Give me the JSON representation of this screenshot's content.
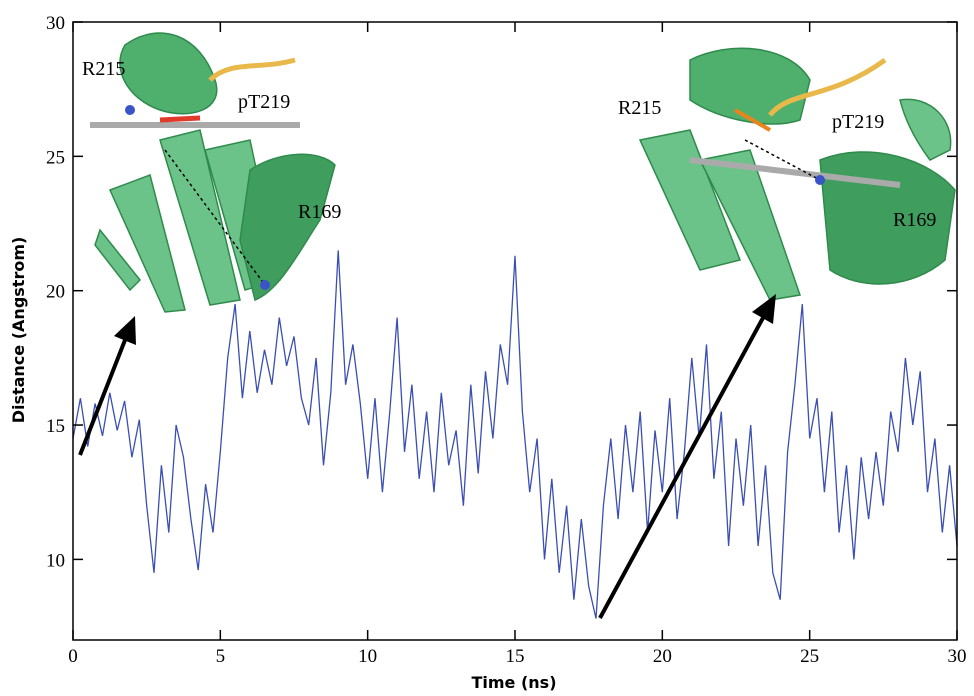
{
  "chart_data": {
    "type": "line",
    "x_label": "Time (ns)",
    "y_label": "Distance (Angstrom)",
    "xlim": [
      0,
      30
    ],
    "xticks": [
      0,
      5,
      10,
      15,
      20,
      25,
      30
    ],
    "ylim": [
      7,
      30
    ],
    "yticks": [
      10,
      15,
      20,
      25,
      30
    ],
    "x": [
      0,
      0.25,
      0.5,
      0.75,
      1,
      1.25,
      1.5,
      1.75,
      2,
      2.25,
      2.5,
      2.75,
      3,
      3.25,
      3.5,
      3.75,
      4,
      4.25,
      4.5,
      4.75,
      5,
      5.25,
      5.5,
      5.75,
      6,
      6.25,
      6.5,
      6.75,
      7,
      7.25,
      7.5,
      7.75,
      8,
      8.25,
      8.5,
      8.75,
      9,
      9.25,
      9.5,
      9.75,
      10,
      10.25,
      10.5,
      10.75,
      11,
      11.25,
      11.5,
      11.75,
      12,
      12.25,
      12.5,
      12.75,
      13,
      13.25,
      13.5,
      13.75,
      14,
      14.25,
      14.5,
      14.75,
      15,
      15.25,
      15.5,
      15.75,
      16,
      16.25,
      16.5,
      16.75,
      17,
      17.25,
      17.5,
      17.75,
      18,
      18.25,
      18.5,
      18.75,
      19,
      19.25,
      19.5,
      19.75,
      20,
      20.25,
      20.5,
      20.75,
      21,
      21.25,
      21.5,
      21.75,
      22,
      22.25,
      22.5,
      22.75,
      23,
      23.25,
      23.5,
      23.75,
      24,
      24.25,
      24.5,
      24.75,
      25,
      25.25,
      25.5,
      25.75,
      26,
      26.25,
      26.5,
      26.75,
      27,
      27.25,
      27.5,
      27.75,
      28,
      28.25,
      28.5,
      28.75,
      29,
      29.25,
      29.5,
      29.75,
      30
    ],
    "series": [
      {
        "color": "#3b4fb3",
        "values": [
          14.5,
          16.0,
          14.2,
          15.8,
          14.6,
          16.2,
          14.8,
          15.9,
          13.8,
          15.2,
          12.0,
          9.5,
          13.5,
          11.0,
          15.0,
          13.8,
          11.5,
          9.6,
          12.8,
          11.0,
          14.0,
          17.5,
          19.5,
          16.0,
          18.5,
          16.2,
          17.8,
          16.5,
          19.0,
          17.2,
          18.3,
          16.0,
          15.0,
          17.5,
          13.5,
          16.2,
          21.5,
          16.5,
          18.0,
          15.8,
          13.0,
          16.0,
          12.5,
          15.5,
          19.0,
          14.0,
          16.5,
          13.0,
          15.5,
          12.5,
          16.2,
          13.5,
          14.8,
          12.0,
          16.5,
          13.2,
          17.0,
          14.5,
          18.0,
          16.5,
          21.3,
          15.5,
          12.5,
          14.5,
          10.0,
          13.0,
          9.5,
          12.0,
          8.5,
          11.5,
          9.0,
          7.8,
          12.0,
          14.5,
          11.5,
          15.0,
          12.5,
          15.5,
          11.0,
          14.8,
          12.5,
          16.0,
          11.5,
          14.0,
          17.5,
          14.5,
          18.0,
          13.0,
          15.5,
          10.5,
          14.5,
          12.0,
          15.0,
          10.5,
          13.5,
          9.5,
          8.5,
          14.0,
          16.5,
          19.5,
          14.5,
          16.0,
          12.5,
          15.5,
          11.0,
          13.5,
          10.0,
          13.8,
          11.5,
          14.0,
          12.0,
          15.5,
          14.0,
          17.5,
          15.0,
          17.0,
          12.5,
          14.5,
          11.0,
          13.5,
          10.5
        ]
      }
    ],
    "insets": [
      {
        "labels": [
          "R215",
          "pT219",
          "R169"
        ]
      },
      {
        "labels": [
          "R215",
          "pT219",
          "R169"
        ]
      }
    ]
  }
}
